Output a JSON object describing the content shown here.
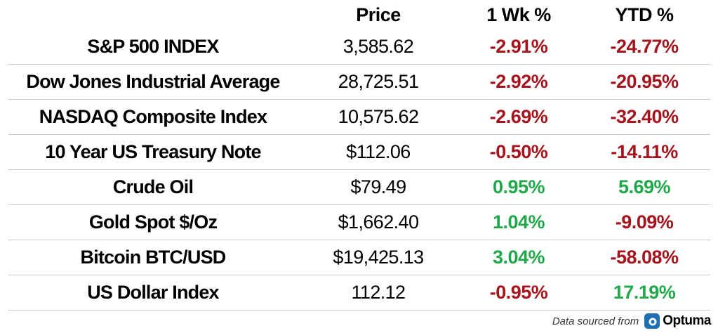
{
  "chart_data": {
    "type": "table",
    "columns": [
      "",
      "Price",
      "1 Wk %",
      "YTD %"
    ],
    "rows": [
      {
        "name": "S&P 500 INDEX",
        "price": "3,585.62",
        "wk": "-2.91%",
        "ytd": "-24.77%"
      },
      {
        "name": "Dow Jones Industrial Average",
        "price": "28,725.51",
        "wk": "-2.92%",
        "ytd": "-20.95%"
      },
      {
        "name": "NASDAQ Composite Index",
        "price": "10,575.62",
        "wk": "-2.69%",
        "ytd": "-32.40%"
      },
      {
        "name": "10 Year US Treasury Note",
        "price": "$112.06",
        "wk": "-0.50%",
        "ytd": "-14.11%"
      },
      {
        "name": "Crude Oil",
        "price": "$79.49",
        "wk": "0.95%",
        "ytd": "5.69%"
      },
      {
        "name": "Gold Spot $/Oz",
        "price": "$1,662.40",
        "wk": "1.04%",
        "ytd": "-9.09%"
      },
      {
        "name": "Bitcoin BTC/USD",
        "price": "$19,425.13",
        "wk": "3.04%",
        "ytd": "-58.08%"
      },
      {
        "name": "US Dollar Index",
        "price": "112.12",
        "wk": "-0.95%",
        "ytd": "17.19%"
      }
    ]
  },
  "colors": {
    "negative": "#a5141c",
    "positive": "#22a84a",
    "logo_blue": "#1f6fb5"
  },
  "footer": {
    "source_text": "Data sourced from",
    "logo_text": "Optuma",
    "logo_icon": "optuma-logo-icon"
  }
}
